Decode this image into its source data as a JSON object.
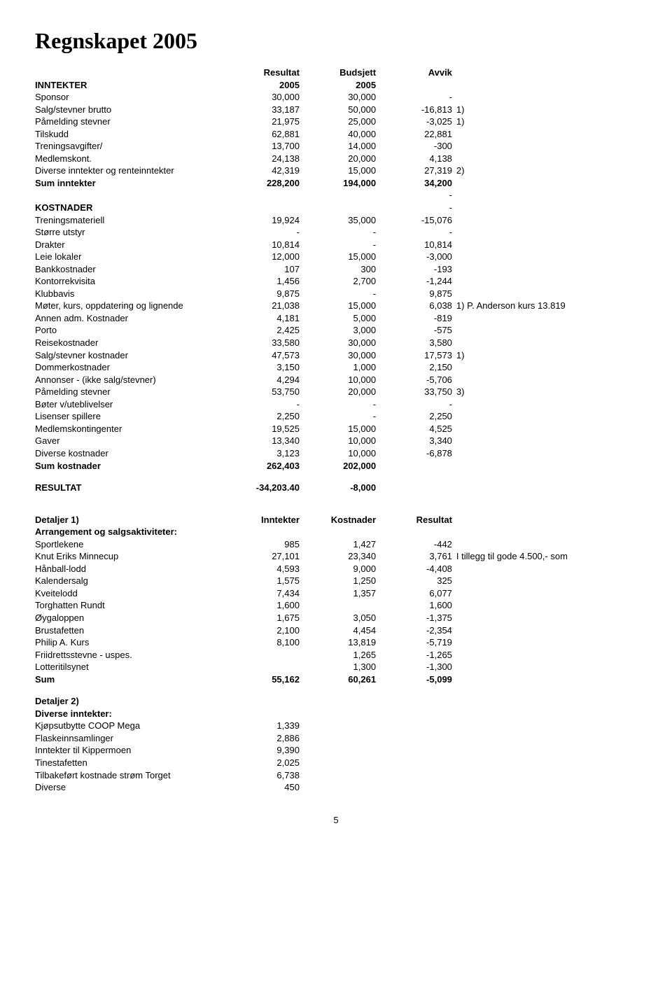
{
  "title": "Regnskapet 2005",
  "headers": {
    "col1": "Resultat",
    "col2": "Budsjett",
    "col3": "Avvik",
    "sub1": "2005",
    "sub2": "2005"
  },
  "inntekter": {
    "label": "INNTEKTER",
    "rows": [
      {
        "label": "Sponsor",
        "c1": "30,000",
        "c2": "30,000",
        "c3": "-",
        "note": ""
      },
      {
        "label": "Salg/stevner brutto",
        "c1": "33,187",
        "c2": "50,000",
        "c3": "-16,813",
        "note": "1)"
      },
      {
        "label": "Påmelding stevner",
        "c1": "21,975",
        "c2": "25,000",
        "c3": "-3,025",
        "note": "1)"
      },
      {
        "label": "Tilskudd",
        "c1": "62,881",
        "c2": "40,000",
        "c3": "22,881",
        "note": ""
      },
      {
        "label": "Treningsavgifter/",
        "c1": "13,700",
        "c2": "14,000",
        "c3": "-300",
        "note": ""
      },
      {
        "label": "Medlemskont.",
        "c1": "24,138",
        "c2": "20,000",
        "c3": "4,138",
        "note": ""
      },
      {
        "label": "Diverse inntekter og renteinntekter",
        "c1": "42,319",
        "c2": "15,000",
        "c3": "27,319",
        "note": "2)"
      }
    ],
    "sum": {
      "label": "Sum inntekter",
      "c1": "228,200",
      "c2": "194,000",
      "c3": "34,200"
    },
    "dash": "-"
  },
  "kostnader": {
    "label": "KOSTNADER",
    "dash": "-",
    "rows": [
      {
        "label": "Treningsmateriell",
        "c1": "19,924",
        "c2": "35,000",
        "c3": "-15,076",
        "note": ""
      },
      {
        "label": "Større utstyr",
        "c1": "-",
        "c2": "-",
        "c3": "-",
        "note": ""
      },
      {
        "label": "Drakter",
        "c1": "10,814",
        "c2": "-",
        "c3": "10,814",
        "note": ""
      },
      {
        "label": "Leie lokaler",
        "c1": "12,000",
        "c2": "15,000",
        "c3": "-3,000",
        "note": ""
      },
      {
        "label": "Bankkostnader",
        "c1": "107",
        "c2": "300",
        "c3": "-193",
        "note": ""
      },
      {
        "label": "Kontorrekvisita",
        "c1": "1,456",
        "c2": "2,700",
        "c3": "-1,244",
        "note": ""
      },
      {
        "label": "Klubbavis",
        "c1": "9,875",
        "c2": "-",
        "c3": "9,875",
        "note": ""
      },
      {
        "label": "Møter, kurs, oppdatering og lignende",
        "c1": "21,038",
        "c2": "15,000",
        "c3": "6,038",
        "note": "1) P. Anderson kurs 13.819"
      },
      {
        "label": "Annen adm. Kostnader",
        "c1": "4,181",
        "c2": "5,000",
        "c3": "-819",
        "note": ""
      },
      {
        "label": "Porto",
        "c1": "2,425",
        "c2": "3,000",
        "c3": "-575",
        "note": ""
      },
      {
        "label": "Reisekostnader",
        "c1": "33,580",
        "c2": "30,000",
        "c3": "3,580",
        "note": ""
      },
      {
        "label": "Salg/stevner kostnader",
        "c1": "47,573",
        "c2": "30,000",
        "c3": "17,573",
        "note": "1)"
      },
      {
        "label": "Dommerkostnader",
        "c1": "3,150",
        "c2": "1,000",
        "c3": "2,150",
        "note": ""
      },
      {
        "label": "Annonser - (ikke salg/stevner)",
        "c1": "4,294",
        "c2": "10,000",
        "c3": "-5,706",
        "note": ""
      },
      {
        "label": "Påmelding stevner",
        "c1": "53,750",
        "c2": "20,000",
        "c3": "33,750",
        "note": "3)"
      },
      {
        "label": "Bøter v/uteblivelser",
        "c1": "-",
        "c2": "-",
        "c3": "-",
        "note": ""
      },
      {
        "label": "Lisenser spillere",
        "c1": "2,250",
        "c2": "-",
        "c3": "2,250",
        "note": ""
      },
      {
        "label": "Medlemskontingenter",
        "c1": "19,525",
        "c2": "15,000",
        "c3": "4,525",
        "note": ""
      },
      {
        "label": "Gaver",
        "c1": "13,340",
        "c2": "10,000",
        "c3": "3,340",
        "note": ""
      },
      {
        "label": "Diverse kostnader",
        "c1": "3,123",
        "c2": "10,000",
        "c3": "-6,878",
        "note": ""
      }
    ],
    "sum": {
      "label": "Sum kostnader",
      "c1": "262,403",
      "c2": "202,000"
    }
  },
  "resultat": {
    "label": "RESULTAT",
    "c1": "-34,203.40",
    "c2": "-8,000"
  },
  "detaljer1": {
    "heading": {
      "label": "Detaljer 1)",
      "c1": "Inntekter",
      "c2": "Kostnader",
      "c3": "Resultat"
    },
    "sub": "Arrangement og salgsaktiviteter:",
    "rows": [
      {
        "label": "Sportlekene",
        "c1": "985",
        "c2": "1,427",
        "c3": "-442",
        "note": ""
      },
      {
        "label": "Knut Eriks Minnecup",
        "c1": "27,101",
        "c2": "23,340",
        "c3": "3,761",
        "note": "I tillegg til gode 4.500,- som"
      },
      {
        "label": "Hånball-lodd",
        "c1": "4,593",
        "c2": "9,000",
        "c3": "-4,408",
        "note": ""
      },
      {
        "label": "Kalendersalg",
        "c1": "1,575",
        "c2": "1,250",
        "c3": "325",
        "note": ""
      },
      {
        "label": "Kveitelodd",
        "c1": "7,434",
        "c2": "1,357",
        "c3": "6,077",
        "note": ""
      },
      {
        "label": "Torghatten Rundt",
        "c1": "1,600",
        "c2": "",
        "c3": "1,600",
        "note": ""
      },
      {
        "label": "Øygaloppen",
        "c1": "1,675",
        "c2": "3,050",
        "c3": "-1,375",
        "note": ""
      },
      {
        "label": "Brustafetten",
        "c1": "2,100",
        "c2": "4,454",
        "c3": "-2,354",
        "note": ""
      },
      {
        "label": "Philip A. Kurs",
        "c1": "8,100",
        "c2": "13,819",
        "c3": "-5,719",
        "note": ""
      },
      {
        "label": "Friidrettsstevne - uspes.",
        "c1": "",
        "c2": "1,265",
        "c3": "-1,265",
        "note": ""
      },
      {
        "label": "Lotteritilsynet",
        "c1": "",
        "c2": "1,300",
        "c3": "-1,300",
        "note": ""
      }
    ],
    "sum": {
      "label": "Sum",
      "c1": "55,162",
      "c2": "60,261",
      "c3": "-5,099"
    }
  },
  "detaljer2": {
    "heading": "Detaljer 2)",
    "sub": "Diverse inntekter:",
    "rows": [
      {
        "label": "Kjøpsutbytte COOP Mega",
        "c1": "1,339"
      },
      {
        "label": "Flaskeinnsamlinger",
        "c1": "2,886"
      },
      {
        "label": "Inntekter til Kippermoen",
        "c1": "9,390"
      },
      {
        "label": "Tinestafetten",
        "c1": "2,025"
      },
      {
        "label": "Tilbakeført kostnade strøm Torget",
        "c1": "6,738"
      },
      {
        "label": "Diverse",
        "c1": "450"
      }
    ]
  },
  "pagenum": "5"
}
